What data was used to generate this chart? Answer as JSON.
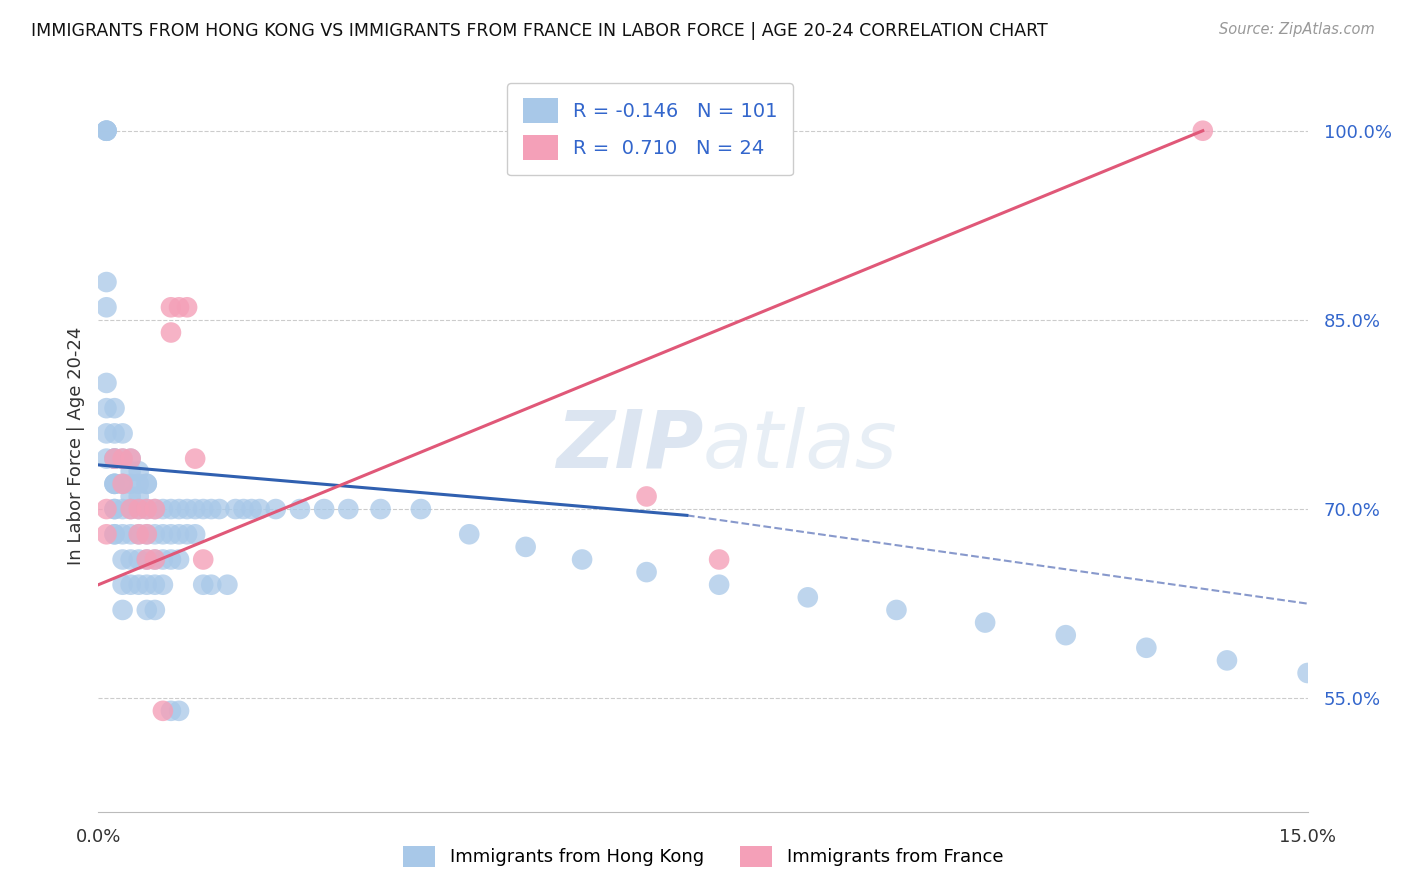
{
  "title": "IMMIGRANTS FROM HONG KONG VS IMMIGRANTS FROM FRANCE IN LABOR FORCE | AGE 20-24 CORRELATION CHART",
  "source": "Source: ZipAtlas.com",
  "ylabel": "In Labor Force | Age 20-24",
  "y_ticks": [
    0.55,
    0.7,
    0.85,
    1.0
  ],
  "y_tick_labels": [
    "55.0%",
    "70.0%",
    "85.0%",
    "100.0%"
  ],
  "hk_R": -0.146,
  "hk_N": 101,
  "fr_R": 0.71,
  "fr_N": 24,
  "hk_color": "#a8c8e8",
  "fr_color": "#f4a0b8",
  "hk_line_color": "#3060b0",
  "hk_dash_color": "#8899cc",
  "fr_line_color": "#e05878",
  "watermark_zip": "ZIP",
  "watermark_atlas": "atlas",
  "background_color": "#ffffff",
  "xlim": [
    0.0,
    0.15
  ],
  "ylim": [
    0.46,
    1.04
  ],
  "hk_x": [
    0.001,
    0.001,
    0.001,
    0.001,
    0.001,
    0.001,
    0.001,
    0.001,
    0.001,
    0.001,
    0.002,
    0.002,
    0.002,
    0.002,
    0.002,
    0.002,
    0.002,
    0.002,
    0.002,
    0.002,
    0.002,
    0.002,
    0.003,
    0.003,
    0.003,
    0.003,
    0.003,
    0.003,
    0.003,
    0.003,
    0.004,
    0.004,
    0.004,
    0.004,
    0.004,
    0.004,
    0.004,
    0.004,
    0.005,
    0.005,
    0.005,
    0.005,
    0.005,
    0.005,
    0.005,
    0.006,
    0.006,
    0.006,
    0.006,
    0.006,
    0.006,
    0.006,
    0.007,
    0.007,
    0.007,
    0.007,
    0.007,
    0.008,
    0.008,
    0.008,
    0.008,
    0.009,
    0.009,
    0.009,
    0.009,
    0.01,
    0.01,
    0.01,
    0.01,
    0.011,
    0.011,
    0.012,
    0.012,
    0.013,
    0.013,
    0.014,
    0.014,
    0.015,
    0.016,
    0.017,
    0.018,
    0.019,
    0.02,
    0.022,
    0.025,
    0.028,
    0.031,
    0.035,
    0.04,
    0.046,
    0.053,
    0.06,
    0.068,
    0.077,
    0.088,
    0.099,
    0.11,
    0.12,
    0.13,
    0.14,
    0.15
  ],
  "hk_y": [
    1.0,
    1.0,
    1.0,
    1.0,
    0.88,
    0.86,
    0.8,
    0.78,
    0.76,
    0.74,
    0.72,
    0.74,
    0.76,
    0.78,
    0.74,
    0.72,
    0.7,
    0.68,
    0.74,
    0.72,
    0.7,
    0.68,
    0.76,
    0.74,
    0.72,
    0.7,
    0.68,
    0.66,
    0.64,
    0.62,
    0.74,
    0.72,
    0.7,
    0.68,
    0.66,
    0.64,
    0.73,
    0.71,
    0.72,
    0.7,
    0.68,
    0.66,
    0.64,
    0.73,
    0.71,
    0.72,
    0.7,
    0.68,
    0.66,
    0.64,
    0.62,
    0.72,
    0.7,
    0.68,
    0.66,
    0.64,
    0.62,
    0.7,
    0.68,
    0.66,
    0.64,
    0.7,
    0.68,
    0.66,
    0.54,
    0.7,
    0.68,
    0.66,
    0.54,
    0.7,
    0.68,
    0.7,
    0.68,
    0.7,
    0.64,
    0.7,
    0.64,
    0.7,
    0.64,
    0.7,
    0.7,
    0.7,
    0.7,
    0.7,
    0.7,
    0.7,
    0.7,
    0.7,
    0.7,
    0.68,
    0.67,
    0.66,
    0.65,
    0.64,
    0.63,
    0.62,
    0.61,
    0.6,
    0.59,
    0.58,
    0.57
  ],
  "fr_x": [
    0.001,
    0.001,
    0.002,
    0.003,
    0.003,
    0.004,
    0.004,
    0.005,
    0.005,
    0.006,
    0.006,
    0.006,
    0.007,
    0.007,
    0.008,
    0.009,
    0.009,
    0.01,
    0.011,
    0.012,
    0.013,
    0.068,
    0.077,
    0.137
  ],
  "fr_y": [
    0.7,
    0.68,
    0.74,
    0.74,
    0.72,
    0.74,
    0.7,
    0.7,
    0.68,
    0.7,
    0.68,
    0.66,
    0.7,
    0.66,
    0.54,
    0.86,
    0.84,
    0.86,
    0.86,
    0.74,
    0.66,
    0.71,
    0.66,
    1.0
  ]
}
